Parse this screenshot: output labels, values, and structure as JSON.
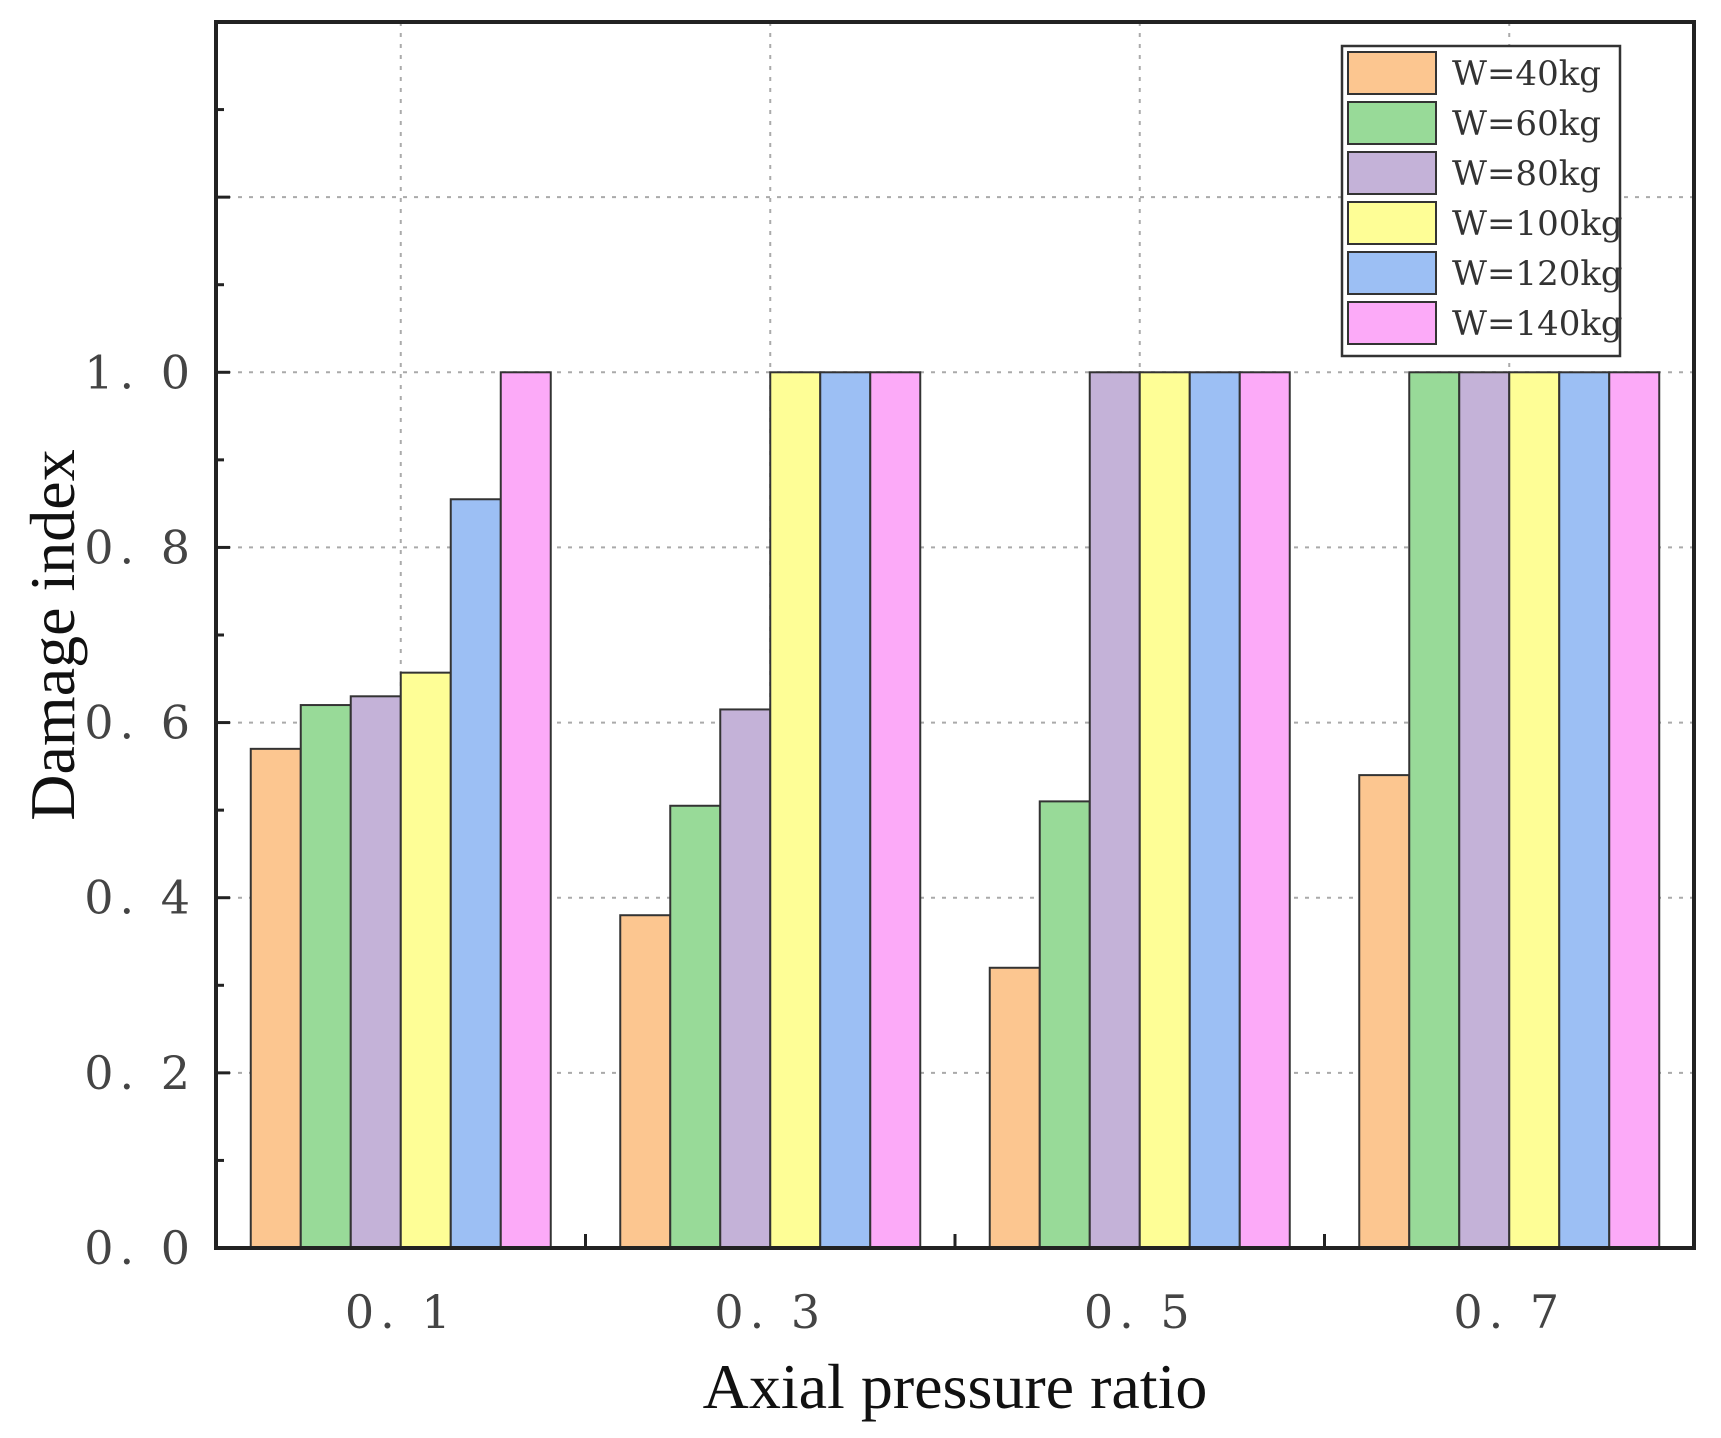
{
  "chart_data": {
    "type": "bar",
    "title": "",
    "xlabel": "Axial pressure ratio",
    "ylabel": "Damage index",
    "categories": [
      "0. 1",
      "0. 3",
      "0. 5",
      "0. 7"
    ],
    "ylim": [
      0,
      1.4
    ],
    "yticks": [
      0.0,
      0.2,
      0.4,
      0.6,
      0.8,
      1.0
    ],
    "ytick_labels": [
      "0. 0",
      "0. 2",
      "0. 4",
      "0. 6",
      "0. 8",
      "1. 0"
    ],
    "grid": true,
    "legend_position": "top-right",
    "series": [
      {
        "name": "W=40kg",
        "color": "#FCC690",
        "values": [
          0.57,
          0.38,
          0.32,
          0.54
        ]
      },
      {
        "name": "W=60kg",
        "color": "#98DA98",
        "values": [
          0.62,
          0.505,
          0.51,
          1.0
        ]
      },
      {
        "name": "W=80kg",
        "color": "#C4B2D8",
        "values": [
          0.63,
          0.615,
          1.0,
          1.0
        ]
      },
      {
        "name": "W=100kg",
        "color": "#FEFE96",
        "values": [
          0.657,
          1.0,
          1.0,
          1.0
        ]
      },
      {
        "name": "W=120kg",
        "color": "#9CBFF4",
        "values": [
          0.855,
          1.0,
          1.0,
          1.0
        ]
      },
      {
        "name": "W=140kg",
        "color": "#FCAAF8",
        "values": [
          1.0,
          1.0,
          1.0,
          1.0
        ]
      }
    ]
  }
}
